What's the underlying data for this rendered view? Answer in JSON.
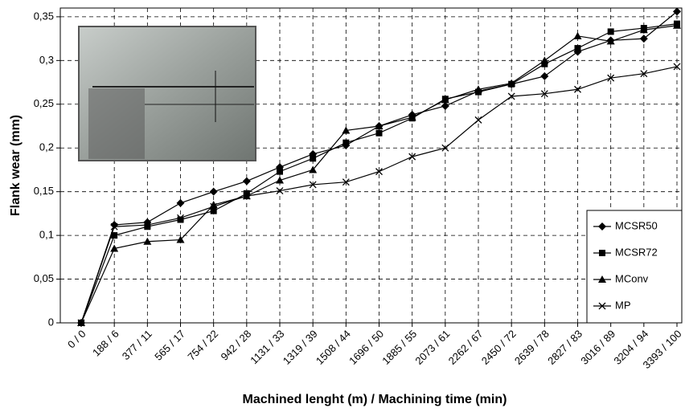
{
  "chart_data": {
    "type": "line",
    "x_label": "Machined lenght (m) / Machining time (min)",
    "y_label": "Flank wear (mm)",
    "categories": [
      "0 / 0",
      "188 / 6",
      "377 / 11",
      "565 / 17",
      "754 / 22",
      "942 / 28",
      "1131 / 33",
      "1319 / 39",
      "1508 / 44",
      "1696 / 50",
      "1885 / 55",
      "2073 / 61",
      "2262 / 67",
      "2450 / 72",
      "2639 / 78",
      "2827 / 83",
      "3016 / 89",
      "3204 / 94",
      "3393 / 100"
    ],
    "series": [
      {
        "name": "MCSR50",
        "color": "#000000",
        "marker": "diamond",
        "values": [
          0,
          0.112,
          0.115,
          0.137,
          0.15,
          0.162,
          0.178,
          0.193,
          0.203,
          0.225,
          0.238,
          0.248,
          0.265,
          0.273,
          0.282,
          0.31,
          0.323,
          0.325,
          0.356
        ]
      },
      {
        "name": "MCSR72",
        "color": "#000000",
        "marker": "square",
        "values": [
          0,
          0.1,
          0.11,
          0.118,
          0.128,
          0.148,
          0.173,
          0.188,
          0.206,
          0.217,
          0.234,
          0.256,
          0.264,
          0.273,
          0.296,
          0.314,
          0.333,
          0.337,
          0.342
        ]
      },
      {
        "name": "MConv",
        "color": "#000000",
        "marker": "triangle",
        "values": [
          0,
          0.085,
          0.093,
          0.095,
          0.135,
          0.145,
          0.163,
          0.175,
          0.22,
          0.225,
          0.235,
          0.255,
          0.267,
          0.274,
          0.3,
          0.328,
          0.322,
          0.335,
          0.34
        ]
      },
      {
        "name": "MP",
        "color": "#000000",
        "marker": "x",
        "values": [
          0,
          0.11,
          0.112,
          0.12,
          0.133,
          0.145,
          0.151,
          0.158,
          0.161,
          0.173,
          0.19,
          0.2,
          0.232,
          0.259,
          0.262,
          0.267,
          0.28,
          0.285,
          0.293
        ]
      }
    ],
    "ylim": [
      0,
      0.36
    ],
    "yticks": [
      0,
      {
        "value": 0.05,
        "label": "0,05"
      },
      {
        "value": 0.1,
        "label": "0,1"
      },
      {
        "value": 0.15,
        "label": "0,15"
      },
      {
        "value": 0.2,
        "label": "0,2"
      },
      {
        "value": 0.25,
        "label": "0,25"
      },
      {
        "value": 0.3,
        "label": "0,3"
      },
      {
        "value": 0.35,
        "label": "0,35"
      }
    ],
    "grid": true,
    "legend": "lower right"
  }
}
